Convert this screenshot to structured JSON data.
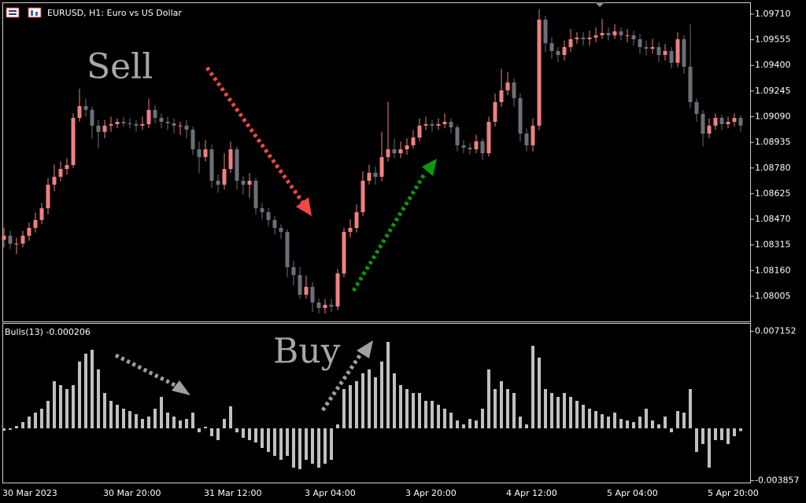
{
  "chart_data": [
    {
      "type": "candlestick",
      "title": "EURUSD, H1: Euro vs US Dollar",
      "annotations": [
        "Sell"
      ],
      "up_color": "#f08080",
      "down_color": "#6b7078",
      "categories": [
        "30 Mar 2023",
        null,
        null,
        null,
        null,
        null,
        null,
        null,
        null,
        null,
        null,
        null,
        null,
        null,
        null,
        null,
        "30 Mar 20:00",
        null,
        null,
        null,
        null,
        null,
        null,
        null,
        null,
        null,
        null,
        null,
        null,
        null,
        null,
        null,
        "31 Mar 12:00",
        null,
        null,
        null,
        null,
        null,
        null,
        null,
        null,
        null,
        null,
        null,
        null,
        null,
        null,
        null,
        "3 Apr 04:00",
        null,
        null,
        null,
        null,
        null,
        null,
        null,
        null,
        null,
        null,
        null,
        null,
        null,
        null,
        null,
        "3 Apr 20:00",
        null,
        null,
        null,
        null,
        null,
        null,
        null,
        null,
        null,
        null,
        null,
        null,
        null,
        null,
        null,
        "4 Apr 12:00",
        null,
        null,
        null,
        null,
        null,
        null,
        null,
        null,
        null,
        null,
        null,
        null,
        null,
        null,
        null,
        "5 Apr 04:00",
        null,
        null,
        null,
        null,
        null,
        null,
        null,
        null,
        null,
        null,
        null,
        null,
        null,
        null,
        null,
        "5 Apr 20:00",
        null,
        null,
        null,
        null,
        null
      ],
      "open": [
        1.08346,
        1.08371,
        1.08323,
        1.08323,
        1.08371,
        1.08418,
        1.08466,
        1.08537,
        1.08679,
        1.08727,
        1.08774,
        1.08798,
        1.09083,
        1.09154,
        1.09131,
        1.09036,
        1.08998,
        1.09036,
        1.09045,
        1.09059,
        1.0905,
        1.09045,
        1.09036,
        1.09045,
        1.09131,
        1.09083,
        1.09059,
        1.0905,
        1.09036,
        1.09036,
        1.09012,
        1.08893,
        1.08846,
        1.08893,
        1.08703,
        1.08679,
        1.08774,
        1.08893,
        1.08703,
        1.08679,
        1.08703,
        1.08537,
        1.08513,
        1.08466,
        1.08418,
        1.08394,
        1.08181,
        1.08133,
        1.08014,
        1.08062,
        1.07967,
        1.07934,
        1.07953,
        1.07943,
        1.08143,
        1.08394,
        1.08418,
        1.08513,
        1.08703,
        1.08751,
        1.08727,
        1.08846,
        1.08893,
        1.08869,
        1.08893,
        1.08917,
        1.08964,
        1.09036,
        1.09045,
        1.09036,
        1.09045,
        1.09059,
        1.09026,
        1.08917,
        1.08903,
        1.08893,
        1.08941,
        1.08869,
        1.09059,
        1.09178,
        1.09249,
        1.09297,
        1.09202,
        1.08988,
        1.08917,
        1.09036,
        1.09677,
        1.09534,
        1.09487,
        1.09463,
        1.09511,
        1.09558,
        1.09568,
        1.09558,
        1.09568,
        1.09582,
        1.09596,
        1.09582,
        1.09606,
        1.09582,
        1.09582,
        1.09558,
        1.09511,
        1.09501,
        1.09511,
        1.09463,
        1.09487,
        1.09416,
        1.09558,
        1.09392,
        1.09178,
        1.09107,
        1.08988,
        1.09036,
        1.09083,
        1.09045,
        1.09059,
        1.09083
      ],
      "high": [
        1.0842,
        1.084,
        1.0836,
        1.084,
        1.0845,
        1.0851,
        1.0857,
        1.0872,
        1.088,
        1.0882,
        1.0884,
        1.0911,
        1.0926,
        1.092,
        1.0915,
        1.0907,
        1.0907,
        1.0909,
        1.0908,
        1.0909,
        1.0908,
        1.0907,
        1.0909,
        1.092,
        1.0916,
        1.0911,
        1.0909,
        1.0908,
        1.0906,
        1.0907,
        1.0903,
        1.0894,
        1.0895,
        1.0892,
        1.0874,
        1.0887,
        1.0894,
        1.0891,
        1.0873,
        1.0875,
        1.0872,
        1.0857,
        1.0854,
        1.0849,
        1.0844,
        1.0841,
        1.0822,
        1.0818,
        1.0813,
        1.0809,
        1.0799,
        1.0799,
        1.0799,
        1.0817,
        1.0842,
        1.0847,
        1.0856,
        1.0876,
        1.088,
        1.0879,
        1.09,
        1.0918,
        1.0896,
        1.0894,
        1.0896,
        1.0901,
        1.0908,
        1.0909,
        1.0907,
        1.0908,
        1.0911,
        1.0908,
        1.0904,
        1.0895,
        1.0893,
        1.0898,
        1.0896,
        1.0909,
        1.0923,
        1.0938,
        1.0936,
        1.0932,
        1.0923,
        1.0902,
        1.0908,
        1.0974,
        1.097,
        1.0957,
        1.0951,
        1.0955,
        1.0962,
        1.096,
        1.096,
        1.0961,
        1.0963,
        1.0968,
        1.0963,
        1.0965,
        1.0963,
        1.0962,
        1.0961,
        1.0959,
        1.0955,
        1.0956,
        1.0954,
        1.0953,
        1.0951,
        1.096,
        1.0958,
        1.0965,
        1.092,
        1.0913,
        1.0908,
        1.0911,
        1.091,
        1.0909,
        1.0911,
        1.091
      ],
      "low": [
        1.083,
        1.0829,
        1.0826,
        1.083,
        1.0834,
        1.0839,
        1.0844,
        1.085,
        1.0864,
        1.087,
        1.0874,
        1.0878,
        1.0906,
        1.0909,
        1.0896,
        1.089,
        1.0896,
        1.09,
        1.0902,
        1.0903,
        1.0902,
        1.09,
        1.0901,
        1.0902,
        1.0905,
        1.0902,
        1.0901,
        1.0899,
        1.0898,
        1.0896,
        1.0886,
        1.0875,
        1.0882,
        1.0866,
        1.0863,
        1.0865,
        1.0875,
        1.0865,
        1.0862,
        1.086,
        1.085,
        1.0847,
        1.0843,
        1.0838,
        1.0835,
        1.0812,
        1.0807,
        1.0799,
        1.0799,
        1.0791,
        1.079,
        1.079,
        1.0791,
        1.0792,
        1.0812,
        1.0836,
        1.0839,
        1.0849,
        1.0868,
        1.0868,
        1.087,
        1.0882,
        1.0884,
        1.0884,
        1.0886,
        1.089,
        1.0894,
        1.0901,
        1.09,
        1.0901,
        1.0902,
        1.0899,
        1.0888,
        1.0887,
        1.0886,
        1.0887,
        1.0883,
        1.0885,
        1.0903,
        1.0915,
        1.0922,
        1.0915,
        1.0894,
        1.0888,
        1.0888,
        1.0901,
        1.0948,
        1.0944,
        1.0942,
        1.0943,
        1.0948,
        1.0953,
        1.0952,
        1.0952,
        1.0954,
        1.0956,
        1.0955,
        1.0956,
        1.0955,
        1.0954,
        1.0952,
        1.0947,
        1.0946,
        1.0947,
        1.0942,
        1.0943,
        1.0938,
        1.0939,
        1.0935,
        1.0914,
        1.0906,
        1.0891,
        1.0896,
        1.0901,
        1.0901,
        1.0902,
        1.0903,
        1.09
      ],
      "close": [
        1.08371,
        1.08323,
        1.08323,
        1.08371,
        1.08418,
        1.08466,
        1.08537,
        1.08679,
        1.08727,
        1.08774,
        1.08798,
        1.09083,
        1.09154,
        1.09131,
        1.09036,
        1.08998,
        1.09036,
        1.09045,
        1.09059,
        1.0905,
        1.09045,
        1.09036,
        1.09045,
        1.09131,
        1.09083,
        1.09059,
        1.0905,
        1.09036,
        1.09036,
        1.09012,
        1.08893,
        1.08846,
        1.08893,
        1.08703,
        1.08679,
        1.08774,
        1.08893,
        1.08703,
        1.08679,
        1.08703,
        1.08537,
        1.08513,
        1.08466,
        1.08418,
        1.08394,
        1.08181,
        1.08133,
        1.08014,
        1.08062,
        1.07967,
        1.07934,
        1.07953,
        1.07943,
        1.08143,
        1.08394,
        1.08418,
        1.08513,
        1.08703,
        1.08751,
        1.08727,
        1.08846,
        1.08893,
        1.08869,
        1.08893,
        1.08917,
        1.08964,
        1.09036,
        1.09045,
        1.09036,
        1.09045,
        1.09059,
        1.09026,
        1.08917,
        1.08903,
        1.08893,
        1.08941,
        1.08869,
        1.09059,
        1.09178,
        1.09249,
        1.09297,
        1.09202,
        1.08988,
        1.08917,
        1.09036,
        1.09677,
        1.09534,
        1.09487,
        1.09463,
        1.09511,
        1.09558,
        1.09568,
        1.09558,
        1.09568,
        1.09582,
        1.09596,
        1.09582,
        1.09606,
        1.09582,
        1.09582,
        1.09558,
        1.09511,
        1.09501,
        1.09511,
        1.09463,
        1.09487,
        1.09416,
        1.09558,
        1.09392,
        1.09178,
        1.09107,
        1.08988,
        1.09036,
        1.09083,
        1.09045,
        1.09059,
        1.09083,
        1.09036
      ],
      "ylim": [
        1.07848,
        1.09781
      ],
      "yticks": [
        {
          "value": 1.0971,
          "label": "1.09710"
        },
        1.09555,
        {
          "value": 1.094,
          "label": "1.09400"
        },
        1.09245,
        {
          "value": 1.0909,
          "label": "1.09090"
        },
        1.08935,
        {
          "value": 1.0878,
          "label": "1.08780"
        },
        1.08625,
        {
          "value": 1.0847,
          "label": "1.08470"
        },
        1.08315,
        {
          "value": 1.0816,
          "label": "1.08160"
        },
        1.08005
      ]
    },
    {
      "type": "bar",
      "annotations": [
        "Buy"
      ],
      "series": [
        {
          "name": "Bulls(13)",
          "color": "#c0c0c0",
          "values": [
            -0.000174,
            -0.000116,
            0.000174,
            0.000463,
            0.000869,
            0.001158,
            0.001448,
            0.002027,
            0.003474,
            0.003185,
            0.002895,
            0.003185,
            0.004922,
            0.005501,
            0.00579,
            0.004343,
            0.002606,
            0.002027,
            0.001737,
            0.001448,
            0.001274,
            0.001042,
            0.000695,
            0.000869,
            0.001448,
            0.002316,
            0.001158,
            0.000869,
            0.000579,
            0.000695,
            0.001158,
            -0.00029,
            0.000116,
            -0.000579,
            -0.000869,
            0.000695,
            0.001621,
            -0.00029,
            -0.000695,
            -0.000869,
            -0.001042,
            -0.001448,
            -0.001737,
            -0.002027,
            -0.002316,
            -0.002027,
            -0.002895,
            -0.003011,
            -0.002316,
            -0.002606,
            -0.002895,
            -0.002606,
            -0.002316,
            0.00029,
            0.002895,
            0.003185,
            0.003474,
            0.004053,
            0.004343,
            0.003764,
            0.004922,
            0.006369,
            0.004053,
            0.003185,
            0.002895,
            0.002606,
            0.002606,
            0.002027,
            0.002027,
            0.001737,
            0.001448,
            0.001158,
            0.000579,
            0.00029,
            0.000695,
            0.000579,
            0.001448,
            0.004343,
            0.002895,
            0.003474,
            0.002895,
            0.002606,
            0.000869,
            0.00029,
            0.00608,
            0.005211,
            0.002895,
            0.002606,
            0.002316,
            0.002606,
            0.002316,
            0.002027,
            0.001737,
            0.001448,
            0.001274,
            0.001042,
            0.000869,
            0.001158,
            0.000695,
            0.000579,
            0.000463,
            0.000869,
            0.001448,
            0.000579,
            0.00029,
            0.000869,
            -0.00029,
            0.001274,
            0.001158,
            0.002895,
            -0.001737,
            -0.001158,
            -0.002895,
            -0.000869,
            -0.000869,
            -0.001158,
            -0.000579,
            -0.000206
          ]
        }
      ],
      "ylim": [
        -0.004053,
        0.007759
      ],
      "yticks": [
        0.007152,
        -0.003857
      ]
    }
  ]
}
